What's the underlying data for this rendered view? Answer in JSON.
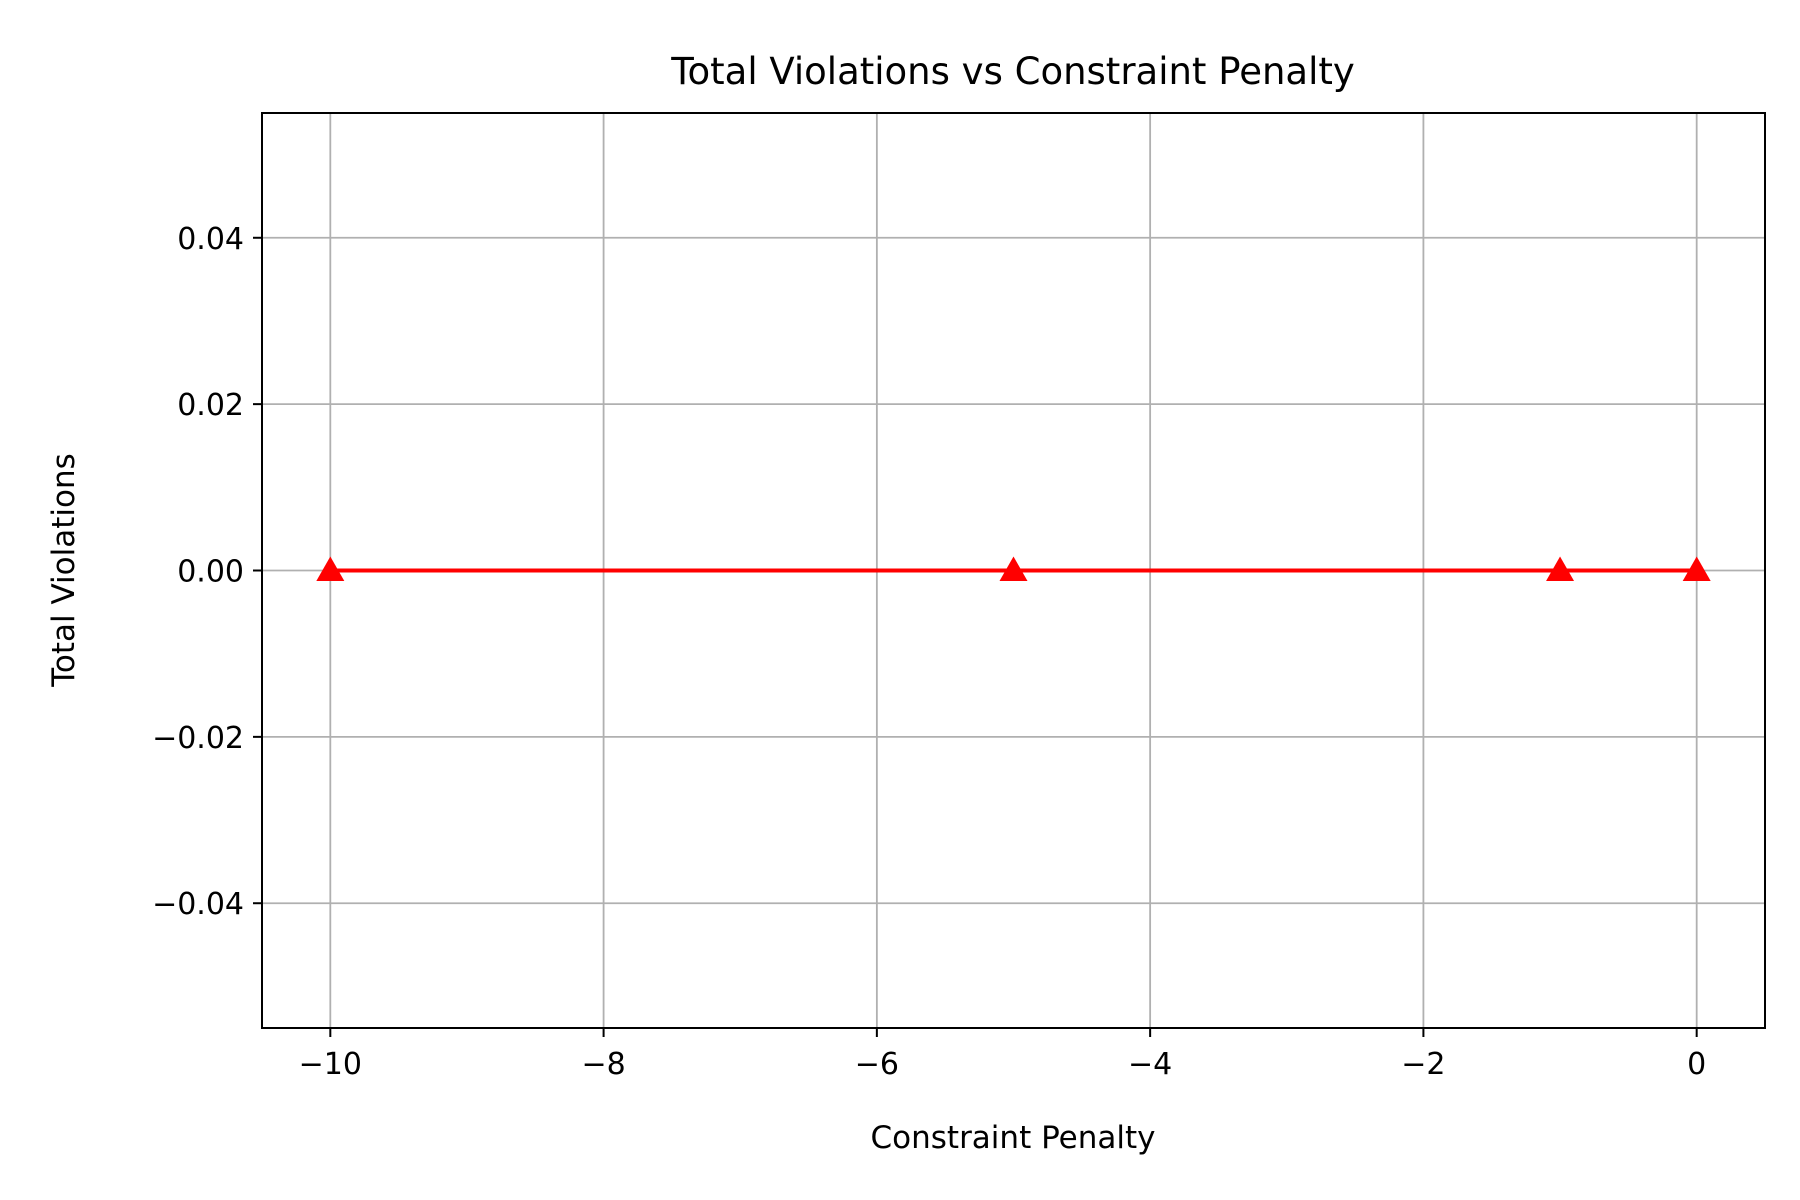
{
  "chart_data": {
    "type": "line",
    "title": "Total Violations vs Constraint Penalty",
    "xlabel": "Constraint Penalty",
    "ylabel": "Total Violations",
    "xlim": [
      -10.5,
      0.5
    ],
    "ylim": [
      -0.055,
      0.055
    ],
    "xticks": [
      -10,
      -8,
      -6,
      -4,
      -2,
      0
    ],
    "xtick_labels": [
      "−10",
      "−8",
      "−6",
      "−4",
      "−2",
      "0"
    ],
    "yticks": [
      -0.04,
      -0.02,
      0.0,
      0.02,
      0.04
    ],
    "ytick_labels": [
      "−0.04",
      "−0.02",
      "0.00",
      "0.02",
      "0.04"
    ],
    "grid": true,
    "series": [
      {
        "x": [
          -10,
          -5,
          -1,
          0
        ],
        "y": [
          0,
          0,
          0,
          0
        ],
        "color": "#ff0000",
        "marker": "triangle-up"
      }
    ]
  }
}
